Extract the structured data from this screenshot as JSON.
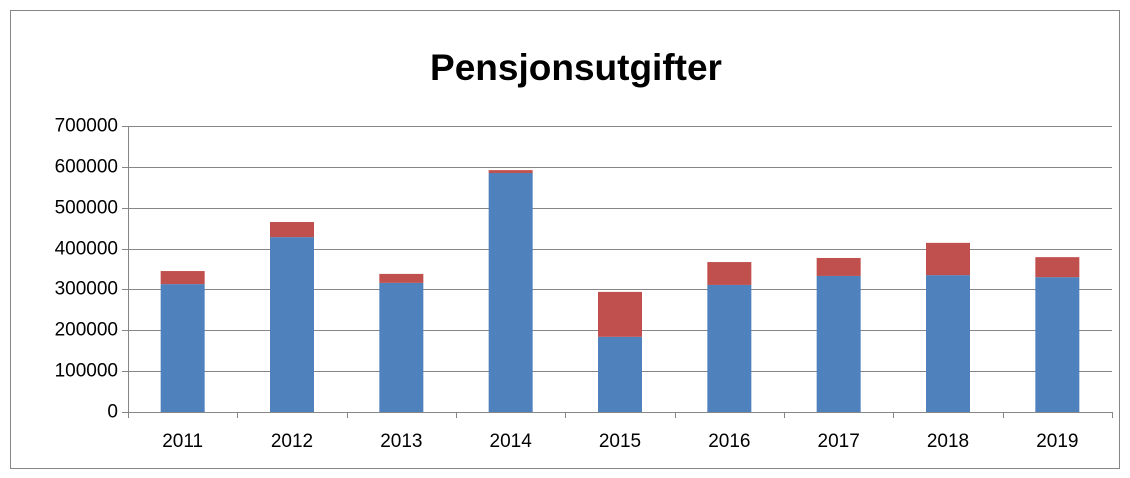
{
  "chart_data": {
    "type": "stacked_bar",
    "title": "Pensjonsutgifter",
    "categories": [
      "2011",
      "2012",
      "2013",
      "2014",
      "2015",
      "2016",
      "2017",
      "2018",
      "2019"
    ],
    "series": [
      {
        "color": "#4f81bd",
        "values": [
          313000,
          428000,
          316000,
          585000,
          184000,
          311000,
          333000,
          335000,
          330000
        ]
      },
      {
        "color": "#c0504d",
        "values": [
          32000,
          37000,
          22000,
          7000,
          110000,
          56000,
          44000,
          79000,
          49000
        ]
      }
    ],
    "ylim": [
      0,
      700000
    ],
    "yticks": [
      0,
      100000,
      200000,
      300000,
      400000,
      500000,
      600000,
      700000
    ],
    "grid": true
  }
}
